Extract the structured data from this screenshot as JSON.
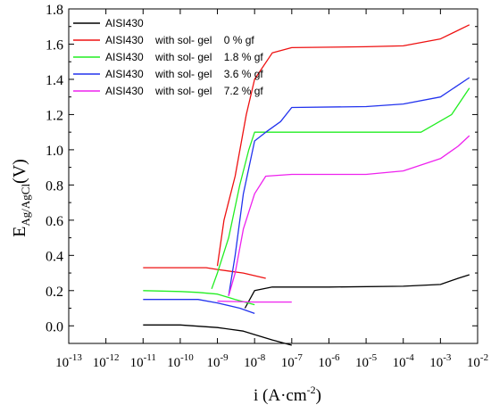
{
  "chart_data": {
    "type": "line",
    "xscale": "log",
    "xlim": [
      1e-13,
      0.01
    ],
    "ylim": [
      -0.1,
      1.8
    ],
    "ylabel": {
      "main": "E",
      "sub": "Ag/AgCl",
      "unit": "(V)"
    },
    "xlabel": {
      "main": "i (A·cm",
      "sup": "-2",
      "end": ")"
    },
    "x_ticks": [
      {
        "value": 1e-13,
        "base": "10",
        "exp": "-13"
      },
      {
        "value": 1e-12,
        "base": "10",
        "exp": "-12"
      },
      {
        "value": 1e-11,
        "base": "10",
        "exp": "-11"
      },
      {
        "value": 1e-10,
        "base": "10",
        "exp": "-10"
      },
      {
        "value": 1e-09,
        "base": "10",
        "exp": "-9"
      },
      {
        "value": 1e-08,
        "base": "10",
        "exp": "-8"
      },
      {
        "value": 1e-07,
        "base": "10",
        "exp": "-7"
      },
      {
        "value": 1e-06,
        "base": "10",
        "exp": "-6"
      },
      {
        "value": 1e-05,
        "base": "10",
        "exp": "-5"
      },
      {
        "value": 0.0001,
        "base": "10",
        "exp": "-4"
      },
      {
        "value": 0.001,
        "base": "10",
        "exp": "-3"
      },
      {
        "value": 0.01,
        "base": "10",
        "exp": "-2"
      }
    ],
    "y_ticks": [
      {
        "value": 0.0,
        "label": "0.0"
      },
      {
        "value": 0.2,
        "label": "0.2"
      },
      {
        "value": 0.4,
        "label": "0.4"
      },
      {
        "value": 0.6,
        "label": "0.6"
      },
      {
        "value": 0.8,
        "label": "0.8"
      },
      {
        "value": 1.0,
        "label": "1.0"
      },
      {
        "value": 1.2,
        "label": "1.2"
      },
      {
        "value": 1.4,
        "label": "1.4"
      },
      {
        "value": 1.6,
        "label": "1.6"
      },
      {
        "value": 1.8,
        "label": "1.8"
      }
    ],
    "legend_position": "top-left",
    "series": [
      {
        "name": "AISI430",
        "color": "#000000",
        "cathodic": [
          [
            1e-07,
            -0.11
          ],
          [
            3e-08,
            -0.08
          ],
          [
            1e-08,
            -0.05
          ],
          [
            5e-09,
            -0.03
          ],
          [
            1e-09,
            -0.01
          ],
          [
            1e-10,
            0.005
          ],
          [
            1e-11,
            0.005
          ]
        ],
        "anodic": [
          [
            5.5e-09,
            0.1
          ],
          [
            1e-08,
            0.2
          ],
          [
            3e-08,
            0.22
          ],
          [
            1e-06,
            0.22
          ],
          [
            0.0001,
            0.225
          ],
          [
            0.001,
            0.235
          ],
          [
            0.003,
            0.27
          ],
          [
            0.006,
            0.29
          ]
        ]
      },
      {
        "name": "AISI430    with sol- gel    0 % gf",
        "color": "#ee1111",
        "cathodic": [
          [
            2e-08,
            0.27
          ],
          [
            5e-09,
            0.3
          ],
          [
            1e-09,
            0.32
          ],
          [
            5e-10,
            0.33
          ],
          [
            1e-10,
            0.33
          ],
          [
            1e-11,
            0.33
          ]
        ],
        "anodic": [
          [
            1e-09,
            0.34
          ],
          [
            1.5e-09,
            0.6
          ],
          [
            3e-09,
            0.85
          ],
          [
            6e-09,
            1.2
          ],
          [
            1e-08,
            1.4
          ],
          [
            3e-08,
            1.55
          ],
          [
            1e-07,
            1.58
          ],
          [
            1e-05,
            1.585
          ],
          [
            0.0001,
            1.59
          ],
          [
            0.001,
            1.63
          ],
          [
            0.006,
            1.71
          ]
        ]
      },
      {
        "name": "AISI430    with sol- gel    1.8 % gf",
        "color": "#22ee22",
        "cathodic": [
          [
            1e-08,
            0.12
          ],
          [
            3e-09,
            0.15
          ],
          [
            1e-09,
            0.18
          ],
          [
            3e-10,
            0.19
          ],
          [
            1e-10,
            0.195
          ],
          [
            1e-11,
            0.2
          ]
        ],
        "anodic": [
          [
            7e-10,
            0.21
          ],
          [
            1e-09,
            0.3
          ],
          [
            2e-09,
            0.5
          ],
          [
            4e-09,
            0.8
          ],
          [
            7e-09,
            1.0
          ],
          [
            1e-08,
            1.1
          ],
          [
            1e-06,
            1.1
          ],
          [
            0.0003,
            1.1
          ],
          [
            0.002,
            1.2
          ],
          [
            0.006,
            1.35
          ]
        ]
      },
      {
        "name": "AISI430    with sol- gel    3.6 % gf",
        "color": "#2233ee",
        "cathodic": [
          [
            1e-08,
            0.07
          ],
          [
            4e-09,
            0.1
          ],
          [
            1e-09,
            0.13
          ],
          [
            3e-10,
            0.15
          ],
          [
            1e-11,
            0.15
          ]
        ],
        "anodic": [
          [
            2e-09,
            0.17
          ],
          [
            3e-09,
            0.4
          ],
          [
            5e-09,
            0.75
          ],
          [
            1e-08,
            1.05
          ],
          [
            2e-08,
            1.1
          ],
          [
            5e-08,
            1.16
          ],
          [
            1e-07,
            1.24
          ],
          [
            1e-05,
            1.245
          ],
          [
            0.0001,
            1.26
          ],
          [
            0.001,
            1.3
          ],
          [
            0.006,
            1.41
          ]
        ]
      },
      {
        "name": "AISI430    with sol- gel    7.2 % gf",
        "color": "#ee22ee",
        "cathodic": [
          [
            1e-09,
            0.14
          ],
          [
            1e-08,
            0.135
          ],
          [
            1e-07,
            0.135
          ]
        ],
        "anodic": [
          [
            2e-09,
            0.17
          ],
          [
            3e-09,
            0.3
          ],
          [
            5e-09,
            0.55
          ],
          [
            1e-08,
            0.75
          ],
          [
            2e-08,
            0.85
          ],
          [
            1e-07,
            0.86
          ],
          [
            1e-05,
            0.86
          ],
          [
            0.0001,
            0.88
          ],
          [
            0.001,
            0.95
          ],
          [
            0.003,
            1.02
          ],
          [
            0.006,
            1.08
          ]
        ]
      }
    ]
  }
}
